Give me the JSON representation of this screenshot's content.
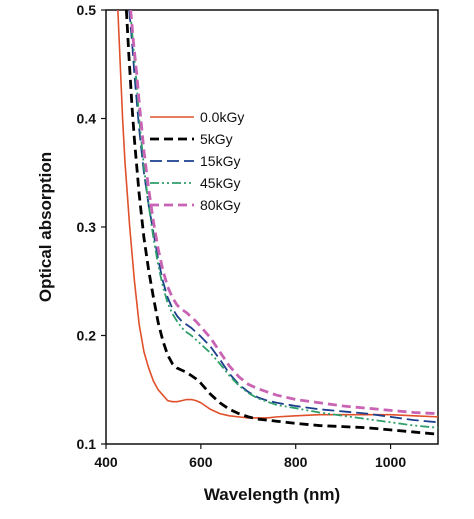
{
  "chart_data": {
    "type": "line",
    "xlabel": "Wavelength (nm)",
    "ylabel": "Optical absorption",
    "xlim": [
      400,
      1100
    ],
    "ylim": [
      0.1,
      0.5
    ],
    "xticks": [
      400,
      600,
      800,
      1000
    ],
    "xtick_labels": [
      "400",
      "600",
      "800",
      "1000"
    ],
    "yticks": [
      0.1,
      0.2,
      0.3,
      0.4,
      0.5
    ],
    "ytick_labels": [
      "0.1",
      "0.2",
      "0.3",
      "0.4",
      "0.5"
    ],
    "grid": false,
    "legend_position": "upper-center",
    "series": [
      {
        "name": "0.0kGy",
        "color": "#e0502a",
        "dash": "solid",
        "x": [
          425,
          430,
          435,
          440,
          445,
          450,
          460,
          470,
          480,
          490,
          500,
          510,
          520,
          530,
          540,
          550,
          560,
          570,
          580,
          590,
          600,
          610,
          620,
          640,
          660,
          680,
          700,
          720,
          740,
          760,
          800,
          850,
          900,
          950,
          1000,
          1050,
          1100
        ],
        "y": [
          0.5,
          0.45,
          0.4,
          0.36,
          0.33,
          0.3,
          0.25,
          0.21,
          0.185,
          0.17,
          0.158,
          0.15,
          0.145,
          0.14,
          0.139,
          0.139,
          0.14,
          0.141,
          0.141,
          0.14,
          0.138,
          0.135,
          0.132,
          0.128,
          0.126,
          0.125,
          0.124,
          0.124,
          0.124,
          0.125,
          0.126,
          0.127,
          0.127,
          0.127,
          0.127,
          0.126,
          0.125
        ]
      },
      {
        "name": "5kGy",
        "color": "#000000",
        "dash": "longdash",
        "x": [
          443,
          448,
          455,
          460,
          470,
          480,
          490,
          500,
          510,
          520,
          530,
          540,
          550,
          560,
          570,
          580,
          590,
          600,
          620,
          640,
          660,
          680,
          700,
          720,
          740,
          760,
          800,
          850,
          900,
          950,
          1000,
          1050,
          1100
        ],
        "y": [
          0.5,
          0.46,
          0.41,
          0.38,
          0.33,
          0.29,
          0.26,
          0.235,
          0.212,
          0.195,
          0.182,
          0.174,
          0.17,
          0.168,
          0.166,
          0.163,
          0.16,
          0.156,
          0.146,
          0.138,
          0.132,
          0.128,
          0.125,
          0.123,
          0.122,
          0.121,
          0.119,
          0.117,
          0.116,
          0.115,
          0.113,
          0.111,
          0.109
        ]
      },
      {
        "name": "15kGy",
        "color": "#1c3f8c",
        "dash": "dash",
        "x": [
          449,
          455,
          460,
          470,
          480,
          490,
          500,
          510,
          520,
          530,
          540,
          550,
          560,
          570,
          580,
          590,
          600,
          620,
          640,
          660,
          680,
          700,
          720,
          740,
          760,
          800,
          850,
          900,
          950,
          1000,
          1050,
          1100
        ],
        "y": [
          0.5,
          0.47,
          0.44,
          0.39,
          0.35,
          0.32,
          0.295,
          0.27,
          0.25,
          0.235,
          0.225,
          0.218,
          0.213,
          0.21,
          0.207,
          0.203,
          0.199,
          0.19,
          0.178,
          0.165,
          0.155,
          0.148,
          0.143,
          0.14,
          0.138,
          0.135,
          0.132,
          0.13,
          0.128,
          0.125,
          0.122,
          0.12
        ]
      },
      {
        "name": "45kGy",
        "color": "#2e9e6a",
        "dash": "dashdotdot",
        "x": [
          451,
          457,
          463,
          470,
          480,
          490,
          500,
          510,
          520,
          530,
          540,
          550,
          560,
          570,
          580,
          590,
          600,
          620,
          640,
          660,
          680,
          700,
          720,
          740,
          760,
          800,
          850,
          900,
          950,
          1000,
          1050,
          1100
        ],
        "y": [
          0.5,
          0.47,
          0.44,
          0.4,
          0.355,
          0.32,
          0.29,
          0.265,
          0.245,
          0.23,
          0.22,
          0.213,
          0.207,
          0.203,
          0.2,
          0.196,
          0.192,
          0.184,
          0.174,
          0.163,
          0.154,
          0.147,
          0.142,
          0.139,
          0.136,
          0.133,
          0.129,
          0.126,
          0.123,
          0.12,
          0.117,
          0.115
        ]
      },
      {
        "name": "80kGy",
        "color": "#c964b4",
        "dash": "longdash",
        "x": [
          452,
          458,
          465,
          470,
          480,
          490,
          500,
          510,
          520,
          530,
          540,
          550,
          560,
          570,
          580,
          590,
          600,
          620,
          640,
          660,
          680,
          700,
          720,
          740,
          760,
          800,
          850,
          900,
          950,
          1000,
          1050,
          1100
        ],
        "y": [
          0.5,
          0.47,
          0.44,
          0.415,
          0.37,
          0.335,
          0.305,
          0.28,
          0.26,
          0.245,
          0.235,
          0.228,
          0.224,
          0.221,
          0.217,
          0.213,
          0.208,
          0.198,
          0.185,
          0.172,
          0.162,
          0.155,
          0.151,
          0.148,
          0.145,
          0.141,
          0.138,
          0.135,
          0.133,
          0.131,
          0.129,
          0.128
        ]
      }
    ]
  }
}
